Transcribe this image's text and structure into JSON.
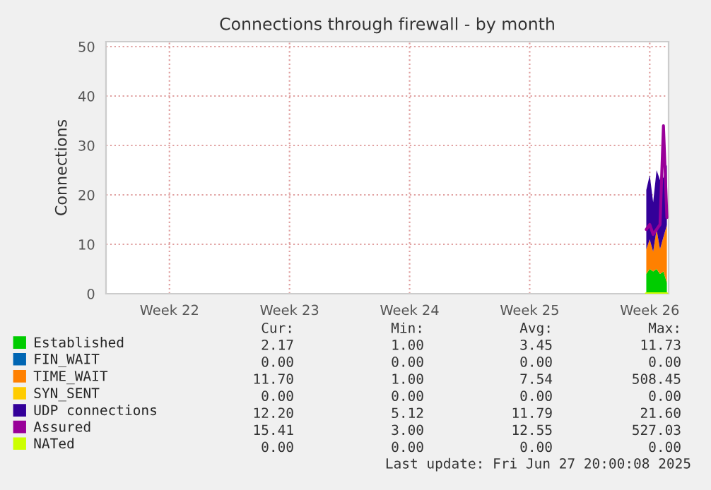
{
  "chart_data": {
    "type": "area",
    "title": "Connections through firewall - by month",
    "ylabel": "Connections",
    "categories": [
      null,
      null,
      null,
      null,
      null,
      null,
      null,
      null,
      null,
      null,
      null,
      null,
      null,
      null,
      null,
      null,
      null,
      null,
      "Week 22",
      null,
      null,
      null,
      null,
      null,
      null,
      null,
      null,
      null,
      null,
      null,
      null,
      null,
      null,
      null,
      null,
      null,
      null,
      null,
      null,
      null,
      null,
      null,
      null,
      null,
      null,
      null,
      null,
      null,
      null,
      null,
      null,
      null,
      null,
      "Week 23",
      null,
      null,
      null,
      null,
      null,
      null,
      null,
      null,
      null,
      null,
      null,
      null,
      null,
      null,
      null,
      null,
      null,
      null,
      null,
      null,
      null,
      null,
      null,
      null,
      null,
      null,
      null,
      null,
      null,
      null,
      null,
      null,
      null,
      null,
      "Week 24",
      null,
      null,
      null,
      null,
      null,
      null,
      null,
      null,
      null,
      null,
      null,
      null,
      null,
      null,
      null,
      null,
      null,
      null,
      null,
      null,
      null,
      null,
      null,
      null,
      null,
      null,
      null,
      null,
      null,
      null,
      null,
      null,
      null,
      null,
      "Week 25",
      null,
      null,
      null,
      null,
      null,
      null,
      null,
      null,
      null,
      null,
      null,
      null,
      null,
      null,
      null,
      null,
      null,
      null,
      null,
      null,
      null,
      null,
      null,
      null,
      null,
      null,
      null,
      null,
      null,
      null,
      null,
      null,
      null,
      null,
      "Week 26",
      null,
      null,
      null,
      null,
      null
    ],
    "ylim": [
      0,
      51
    ],
    "yticks": [
      0,
      10,
      20,
      30,
      40,
      50
    ],
    "stacked": true,
    "grid": true,
    "legend": "bottom left",
    "series": [
      {
        "name": "Established",
        "color": "#00cc00",
        "values": [
          null,
          null,
          null,
          null,
          null,
          null,
          null,
          null,
          null,
          null,
          null,
          null,
          null,
          null,
          null,
          null,
          null,
          null,
          null,
          null,
          null,
          null,
          null,
          null,
          null,
          null,
          null,
          null,
          null,
          null,
          null,
          null,
          null,
          null,
          null,
          null,
          null,
          null,
          null,
          null,
          null,
          null,
          null,
          null,
          null,
          null,
          null,
          null,
          null,
          null,
          null,
          null,
          null,
          null,
          null,
          null,
          null,
          null,
          null,
          null,
          null,
          null,
          null,
          null,
          null,
          null,
          null,
          null,
          null,
          null,
          null,
          null,
          null,
          null,
          null,
          null,
          null,
          null,
          null,
          null,
          null,
          null,
          null,
          null,
          null,
          null,
          null,
          null,
          null,
          null,
          null,
          null,
          null,
          null,
          null,
          null,
          null,
          null,
          null,
          null,
          null,
          null,
          null,
          null,
          null,
          null,
          null,
          null,
          null,
          null,
          null,
          null,
          null,
          null,
          null,
          null,
          null,
          null,
          null,
          null,
          null,
          null,
          null,
          null,
          null,
          null,
          null,
          null,
          null,
          null,
          null,
          null,
          null,
          null,
          null,
          null,
          null,
          null,
          null,
          null,
          null,
          null,
          null,
          null,
          null,
          null,
          null,
          null,
          null,
          null,
          null,
          null,
          null,
          null,
          null,
          null,
          null,
          4,
          5,
          4.5,
          5,
          4,
          4.5,
          2.2
        ]
      },
      {
        "name": "FIN_WAIT",
        "color": "#0066b3",
        "values": [
          null,
          null,
          null,
          null,
          null,
          null,
          null,
          null,
          null,
          null,
          null,
          null,
          null,
          null,
          null,
          null,
          null,
          null,
          null,
          null,
          null,
          null,
          null,
          null,
          null,
          null,
          null,
          null,
          null,
          null,
          null,
          null,
          null,
          null,
          null,
          null,
          null,
          null,
          null,
          null,
          null,
          null,
          null,
          null,
          null,
          null,
          null,
          null,
          null,
          null,
          null,
          null,
          null,
          null,
          null,
          null,
          null,
          null,
          null,
          null,
          null,
          null,
          null,
          null,
          null,
          null,
          null,
          null,
          null,
          null,
          null,
          null,
          null,
          null,
          null,
          null,
          null,
          null,
          null,
          null,
          null,
          null,
          null,
          null,
          null,
          null,
          null,
          null,
          null,
          null,
          null,
          null,
          null,
          null,
          null,
          null,
          null,
          null,
          null,
          null,
          null,
          null,
          null,
          null,
          null,
          null,
          null,
          null,
          null,
          null,
          null,
          null,
          null,
          null,
          null,
          null,
          null,
          null,
          null,
          null,
          null,
          null,
          null,
          null,
          null,
          null,
          null,
          null,
          null,
          null,
          null,
          null,
          null,
          null,
          null,
          null,
          null,
          null,
          null,
          null,
          null,
          null,
          null,
          null,
          null,
          null,
          null,
          null,
          null,
          null,
          null,
          null,
          null,
          null,
          null,
          null,
          null,
          null,
          null,
          null,
          null,
          null,
          null,
          null
        ]
      },
      {
        "name": "TIME_WAIT",
        "color": "#ff8000",
        "values": [
          null,
          null,
          null,
          null,
          null,
          null,
          null,
          null,
          null,
          null,
          null,
          null,
          null,
          null,
          null,
          null,
          null,
          null,
          null,
          null,
          null,
          null,
          null,
          null,
          null,
          null,
          null,
          null,
          null,
          null,
          null,
          null,
          null,
          null,
          null,
          null,
          null,
          null,
          null,
          null,
          null,
          null,
          null,
          null,
          null,
          null,
          null,
          null,
          null,
          null,
          null,
          null,
          null,
          null,
          null,
          null,
          null,
          null,
          null,
          null,
          null,
          null,
          null,
          null,
          null,
          null,
          null,
          null,
          null,
          null,
          null,
          null,
          null,
          null,
          null,
          null,
          null,
          null,
          null,
          null,
          null,
          null,
          null,
          null,
          null,
          null,
          null,
          null,
          null,
          null,
          null,
          null,
          null,
          null,
          null,
          null,
          null,
          null,
          null,
          null,
          null,
          null,
          null,
          null,
          null,
          null,
          null,
          null,
          null,
          null,
          null,
          null,
          null,
          null,
          null,
          null,
          null,
          null,
          null,
          null,
          null,
          null,
          null,
          null,
          null,
          null,
          null,
          null,
          null,
          null,
          null,
          null,
          null,
          null,
          null,
          null,
          null,
          null,
          null,
          null,
          null,
          null,
          null,
          null,
          null,
          null,
          null,
          null,
          null,
          null,
          null,
          null,
          null,
          null,
          null,
          null,
          null,
          5,
          6,
          4,
          8,
          5,
          7,
          11.7
        ]
      },
      {
        "name": "SYN_SENT",
        "color": "#ffcc00",
        "values": [
          null,
          null,
          null,
          null,
          null,
          null,
          null,
          null,
          null,
          null,
          null,
          null,
          null,
          null,
          null,
          null,
          null,
          null,
          null,
          null,
          null,
          null,
          null,
          null,
          null,
          null,
          null,
          null,
          null,
          null,
          null,
          null,
          null,
          null,
          null,
          null,
          null,
          null,
          null,
          null,
          null,
          null,
          null,
          null,
          null,
          null,
          null,
          null,
          null,
          null,
          null,
          null,
          null,
          null,
          null,
          null,
          null,
          null,
          null,
          null,
          null,
          null,
          null,
          null,
          null,
          null,
          null,
          null,
          null,
          null,
          null,
          null,
          null,
          null,
          null,
          null,
          null,
          null,
          null,
          null,
          null,
          null,
          null,
          null,
          null,
          null,
          null,
          null,
          null,
          null,
          null,
          null,
          null,
          null,
          null,
          null,
          null,
          null,
          null,
          null,
          null,
          null,
          null,
          null,
          null,
          null,
          null,
          null,
          null,
          null,
          null,
          null,
          null,
          null,
          null,
          null,
          null,
          null,
          null,
          null,
          null,
          null,
          null,
          null,
          null,
          null,
          null,
          null,
          null,
          null,
          null,
          null,
          null,
          null,
          null,
          null,
          null,
          null,
          null,
          null,
          null,
          null,
          null,
          null,
          null,
          null,
          null,
          null,
          null,
          null,
          null,
          null,
          null,
          null,
          null,
          null,
          null,
          null,
          null,
          null,
          null,
          null,
          null,
          null
        ]
      },
      {
        "name": "UDP connections",
        "color": "#330099",
        "values": [
          null,
          null,
          null,
          null,
          null,
          null,
          null,
          null,
          null,
          null,
          null,
          null,
          null,
          null,
          null,
          null,
          null,
          null,
          null,
          null,
          null,
          null,
          null,
          null,
          null,
          null,
          null,
          null,
          null,
          null,
          null,
          null,
          null,
          null,
          null,
          null,
          null,
          null,
          null,
          null,
          null,
          null,
          null,
          null,
          null,
          null,
          null,
          null,
          null,
          null,
          null,
          null,
          null,
          null,
          null,
          null,
          null,
          null,
          null,
          null,
          null,
          null,
          null,
          null,
          null,
          null,
          null,
          null,
          null,
          null,
          null,
          null,
          null,
          null,
          null,
          null,
          null,
          null,
          null,
          null,
          null,
          null,
          null,
          null,
          null,
          null,
          null,
          null,
          null,
          null,
          null,
          null,
          null,
          null,
          null,
          null,
          null,
          null,
          null,
          null,
          null,
          null,
          null,
          null,
          null,
          null,
          null,
          null,
          null,
          null,
          null,
          null,
          null,
          null,
          null,
          null,
          null,
          null,
          null,
          null,
          null,
          null,
          null,
          null,
          null,
          null,
          null,
          null,
          null,
          null,
          null,
          null,
          null,
          null,
          null,
          null,
          null,
          null,
          null,
          null,
          null,
          null,
          null,
          null,
          null,
          null,
          null,
          null,
          null,
          null,
          null,
          null,
          null,
          null,
          null,
          null,
          null,
          12,
          13,
          10,
          12,
          14,
          12,
          12.2
        ]
      },
      {
        "name": "Assured",
        "color": "#990099",
        "type": "line",
        "values": [
          null,
          null,
          null,
          null,
          null,
          null,
          null,
          null,
          null,
          null,
          null,
          null,
          null,
          null,
          null,
          null,
          null,
          null,
          null,
          null,
          null,
          null,
          null,
          null,
          null,
          null,
          null,
          null,
          null,
          null,
          null,
          null,
          null,
          null,
          null,
          null,
          null,
          null,
          null,
          null,
          null,
          null,
          null,
          null,
          null,
          null,
          null,
          null,
          null,
          null,
          null,
          null,
          null,
          null,
          null,
          null,
          null,
          null,
          null,
          null,
          null,
          null,
          null,
          null,
          null,
          null,
          null,
          null,
          null,
          null,
          null,
          null,
          null,
          null,
          null,
          null,
          null,
          null,
          null,
          null,
          null,
          null,
          null,
          null,
          null,
          null,
          null,
          null,
          null,
          null,
          null,
          null,
          null,
          null,
          null,
          null,
          null,
          null,
          null,
          null,
          null,
          null,
          null,
          null,
          null,
          null,
          null,
          null,
          null,
          null,
          null,
          null,
          null,
          null,
          null,
          null,
          null,
          null,
          null,
          null,
          null,
          null,
          null,
          null,
          null,
          null,
          null,
          null,
          null,
          null,
          null,
          null,
          null,
          null,
          null,
          null,
          null,
          null,
          null,
          null,
          null,
          null,
          null,
          null,
          null,
          null,
          null,
          null,
          null,
          null,
          null,
          null,
          null,
          null,
          null,
          null,
          null,
          13,
          14,
          12,
          13,
          14,
          34,
          15.4
        ]
      },
      {
        "name": "NATed",
        "color": "#ccff00",
        "type": "line",
        "values": [
          null,
          null,
          null,
          null,
          null,
          null,
          null,
          null,
          null,
          null,
          null,
          null,
          null,
          null,
          null,
          null,
          null,
          null,
          null,
          null,
          null,
          null,
          null,
          null,
          null,
          null,
          null,
          null,
          null,
          null,
          null,
          null,
          null,
          null,
          null,
          null,
          null,
          null,
          null,
          null,
          null,
          null,
          null,
          null,
          null,
          null,
          null,
          null,
          null,
          null,
          null,
          null,
          null,
          null,
          null,
          null,
          null,
          null,
          null,
          null,
          null,
          null,
          null,
          null,
          null,
          null,
          null,
          null,
          null,
          null,
          null,
          null,
          null,
          null,
          null,
          null,
          null,
          null,
          null,
          null,
          null,
          null,
          null,
          null,
          null,
          null,
          null,
          null,
          null,
          null,
          null,
          null,
          null,
          null,
          null,
          null,
          null,
          null,
          null,
          null,
          null,
          null,
          null,
          null,
          null,
          null,
          null,
          null,
          null,
          null,
          null,
          null,
          null,
          null,
          null,
          null,
          null,
          null,
          null,
          null,
          null,
          null,
          null,
          null,
          null,
          null,
          null,
          null,
          null,
          null,
          null,
          null,
          null,
          null,
          null,
          null,
          null,
          null,
          null,
          null,
          null,
          null,
          null,
          null,
          null,
          null,
          null,
          null,
          null,
          null,
          null,
          null,
          null,
          null,
          null,
          null,
          null,
          0,
          0,
          0,
          0,
          0,
          0,
          0
        ]
      }
    ],
    "annotations": [
      "Cur:",
      "Min:",
      "Avg:",
      "Max:",
      "2.17",
      "1.00",
      "3.45",
      "11.73",
      "0.00",
      "0.00",
      "0.00",
      "0.00",
      "11.70",
      "1.00",
      "7.54",
      "508.45",
      "0.00",
      "0.00",
      "0.00",
      "0.00",
      "12.20",
      "5.12",
      "11.79",
      "21.60",
      "15.41",
      "3.00",
      "12.55",
      "527.03",
      "0.00",
      "0.00",
      "0.00",
      "0.00",
      "Last update: Fri Jun 27 20:00:08 2025"
    ]
  }
}
